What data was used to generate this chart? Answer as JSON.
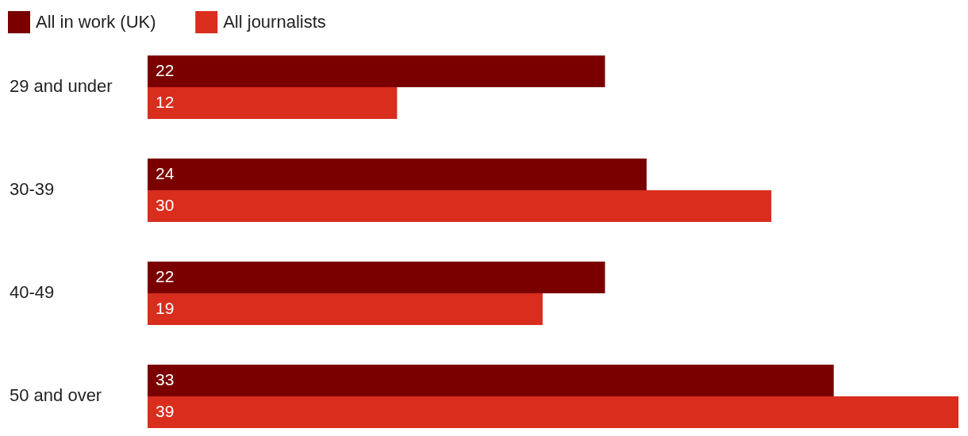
{
  "chart_data": {
    "type": "bar",
    "orientation": "horizontal",
    "categories": [
      "29 and under",
      "30-39",
      "40-49",
      "50 and over"
    ],
    "series": [
      {
        "name": "All in work (UK)",
        "color": "#7a0000",
        "values": [
          22,
          24,
          22,
          33
        ]
      },
      {
        "name": "All journalists",
        "color": "#d92d1e",
        "values": [
          12,
          30,
          19,
          39
        ]
      }
    ],
    "data_labels": true,
    "legend": "top left",
    "grid": false
  }
}
